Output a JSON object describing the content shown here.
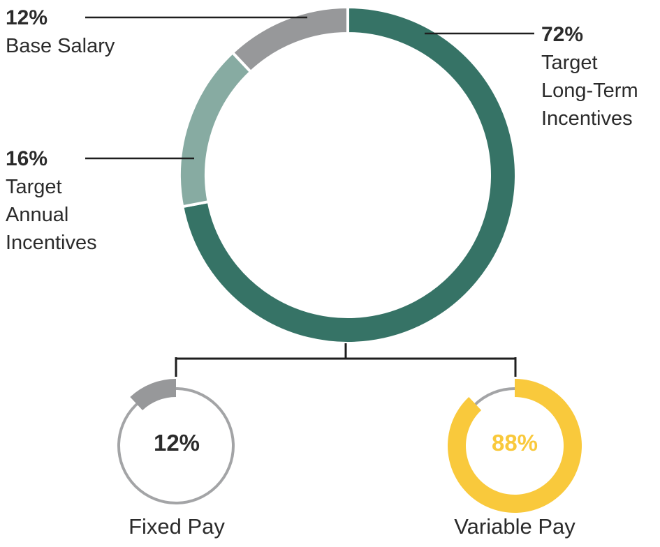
{
  "chart_data": [
    {
      "type": "pie",
      "style": "donut",
      "slices": [
        {
          "label_pct": "72%",
          "label_lines": [
            "Target",
            "Long-Term",
            "Incentives"
          ],
          "value": 72,
          "color": "#367366"
        },
        {
          "label_pct": "16%",
          "label_lines": [
            "Target",
            "Annual",
            "Incentives"
          ],
          "value": 16,
          "color": "#87aba2"
        },
        {
          "label_pct": "12%",
          "label_lines": [
            "Base Salary"
          ],
          "value": 12,
          "color": "#97989a"
        }
      ]
    },
    {
      "type": "pie",
      "style": "donut",
      "center_label": "12%",
      "caption": "Fixed Pay",
      "highlight_value": 12,
      "highlight_color": "#97989a",
      "track_color": "#a3a4a6"
    },
    {
      "type": "pie",
      "style": "donut",
      "center_label": "88%",
      "caption": "Variable Pay",
      "highlight_value": 88,
      "highlight_color": "#f9c93c",
      "track_color": "#a3a4a6"
    }
  ]
}
